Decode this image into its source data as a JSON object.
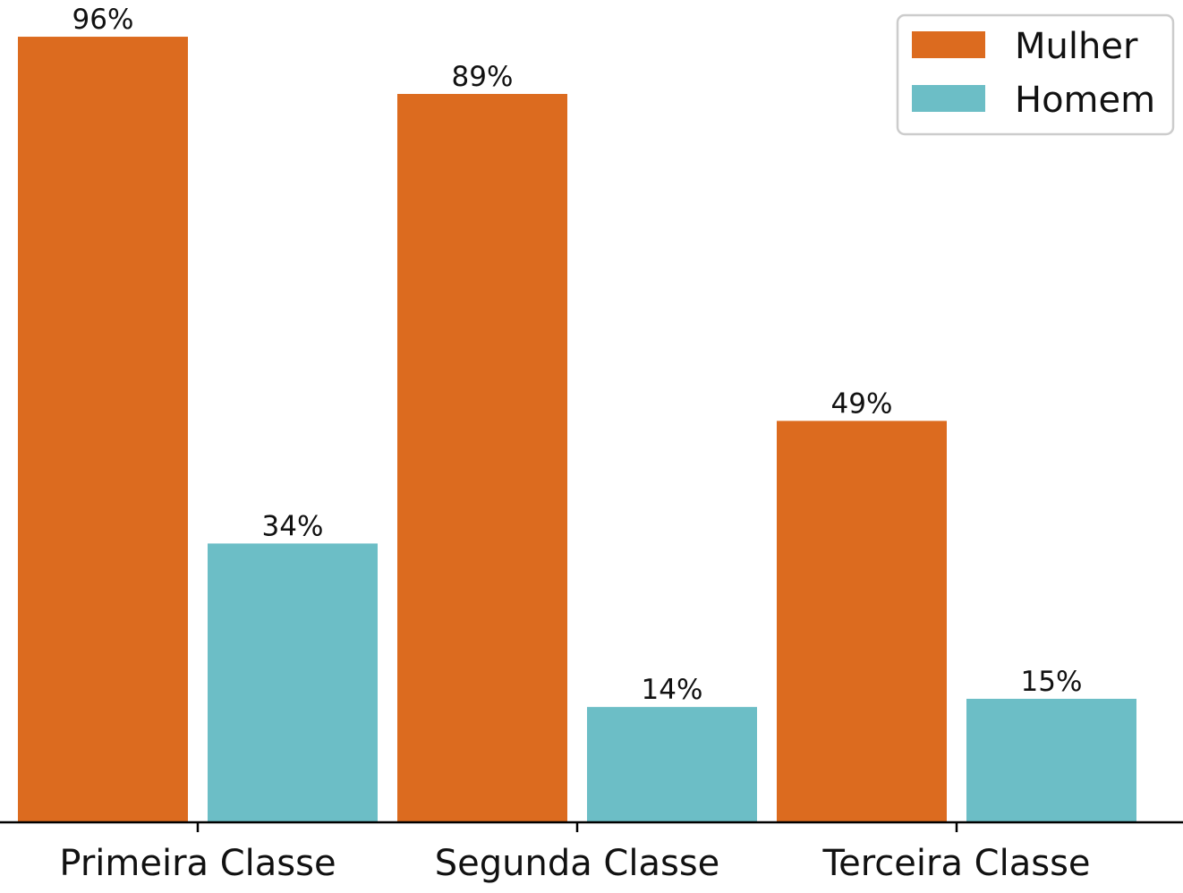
{
  "chart_data": {
    "type": "bar",
    "categories": [
      "Primeira Classe",
      "Segunda Classe",
      "Terceira Classe"
    ],
    "series": [
      {
        "name": "Mulher",
        "values": [
          96,
          89,
          49
        ],
        "labels": [
          "96%",
          "89%",
          "49%"
        ],
        "color": "#DC6B1F"
      },
      {
        "name": "Homem",
        "values": [
          34,
          14,
          15
        ],
        "labels": [
          "34%",
          "14%",
          "15%"
        ],
        "color": "#6CBEC6"
      }
    ],
    "ylim": [
      0,
      100
    ],
    "grid": false,
    "legend": {
      "placement": "top-right"
    }
  }
}
